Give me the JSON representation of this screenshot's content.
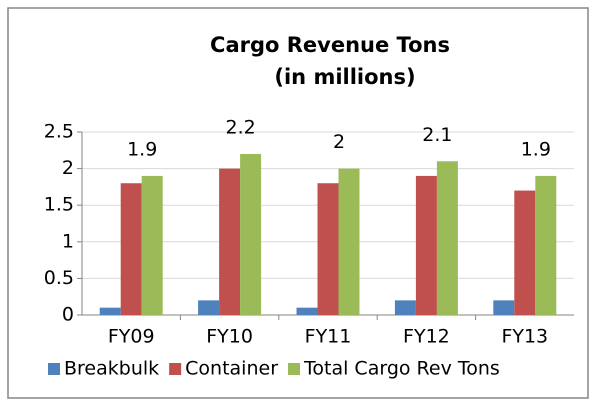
{
  "chart_data": {
    "type": "bar",
    "title": "Cargo Revenue Tons",
    "subtitle": "(in millions)",
    "categories": [
      "FY09",
      "FY10",
      "FY11",
      "FY12",
      "FY13"
    ],
    "series": [
      {
        "name": "Breakbulk",
        "color": "#4f81bd",
        "values": [
          0.1,
          0.2,
          0.1,
          0.2,
          0.2
        ]
      },
      {
        "name": "Container",
        "color": "#c0504d",
        "values": [
          1.8,
          2.0,
          1.8,
          1.9,
          1.7
        ]
      },
      {
        "name": "Total Cargo Rev Tons",
        "color": "#9bbb59",
        "values": [
          1.9,
          2.2,
          2.0,
          2.1,
          1.9
        ],
        "data_labels": true
      }
    ],
    "ylim": [
      0,
      2.5
    ],
    "yticks": [
      0,
      0.5,
      1,
      1.5,
      2,
      2.5
    ],
    "grid": true,
    "legend": "bottom"
  }
}
